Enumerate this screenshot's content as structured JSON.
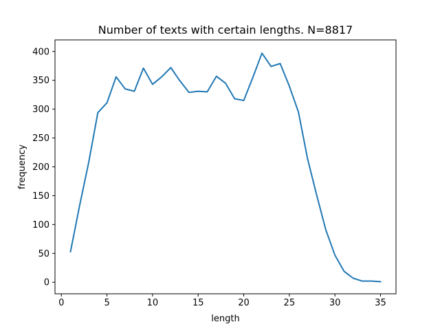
{
  "chart_data": {
    "type": "line",
    "title": "Number of texts with certain lengths. N=8817",
    "xlabel": "length",
    "ylabel": "frequency",
    "xlim": [
      -0.7,
      36.7
    ],
    "ylim": [
      -20,
      420
    ],
    "xticks": [
      0,
      5,
      10,
      15,
      20,
      25,
      30,
      35
    ],
    "yticks": [
      0,
      50,
      100,
      150,
      200,
      250,
      300,
      350,
      400
    ],
    "grid": false,
    "series": [
      {
        "color": "#1f77b4",
        "x": [
          1,
          2,
          3,
          4,
          5,
          6,
          7,
          8,
          9,
          10,
          11,
          12,
          13,
          14,
          15,
          16,
          17,
          18,
          19,
          20,
          21,
          22,
          23,
          24,
          25,
          26,
          27,
          28,
          29,
          30,
          31,
          32,
          33,
          34,
          35
        ],
        "y": [
          53,
          133,
          208,
          294,
          311,
          356,
          335,
          331,
          371,
          343,
          356,
          372,
          349,
          329,
          331,
          330,
          357,
          345,
          318,
          315,
          355,
          397,
          374,
          379,
          340,
          295,
          214,
          151,
          91,
          47,
          19,
          7,
          2,
          2,
          1
        ]
      }
    ]
  }
}
